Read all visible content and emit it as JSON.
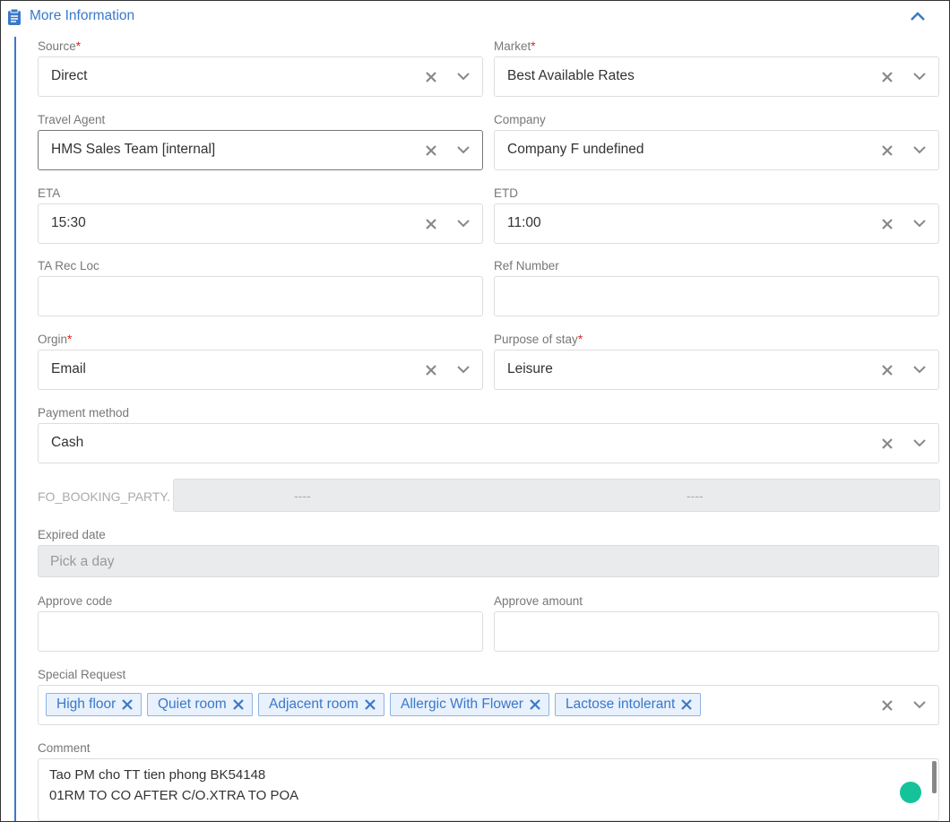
{
  "header": {
    "title": "More Information"
  },
  "rows": [
    [
      {
        "type": "select",
        "label": "Source",
        "required": "*",
        "value": "Direct"
      },
      {
        "type": "select",
        "label": "Market",
        "required": "*",
        "value": "Best Available Rates"
      }
    ],
    [
      {
        "type": "select",
        "label": "Travel Agent",
        "value": "HMS Sales Team [internal]",
        "focused": true
      },
      {
        "type": "select",
        "label": "Company",
        "value": "Company F undefined"
      }
    ],
    [
      {
        "type": "select",
        "label": "ETA",
        "value": "15:30"
      },
      {
        "type": "select",
        "label": "ETD",
        "value": "11:00"
      }
    ],
    [
      {
        "type": "input",
        "label": "TA Rec Loc"
      },
      {
        "type": "input",
        "label": "Ref Number"
      }
    ],
    [
      {
        "type": "select",
        "label": "Orgin",
        "required": "*",
        "value": "Email"
      },
      {
        "type": "select",
        "label": "Purpose of stay",
        "required": "*",
        "value": "Leisure"
      }
    ],
    [
      {
        "type": "select",
        "label": "Payment method",
        "value": "Cash"
      }
    ],
    [
      {
        "type": "range",
        "label": "FO_BOOKING_PARTY.",
        "values": [
          "----",
          "----"
        ]
      }
    ],
    [
      {
        "type": "date",
        "label": "Expired date",
        "placeholder": "Pick a day"
      }
    ],
    [
      {
        "type": "input",
        "label": "Approve code"
      },
      {
        "type": "input",
        "label": "Approve amount"
      }
    ],
    [
      {
        "type": "tags",
        "label": "Special Request",
        "tags": [
          "High floor",
          "Quiet room",
          "Adjacent room",
          "Allergic With Flower",
          "Lactose intolerant"
        ]
      }
    ],
    [
      {
        "type": "textarea",
        "label": "Comment",
        "lines": [
          "Tao PM cho TT tien phong BK54148",
          "01RM TO CO AFTER C/O.XTRA TO POA"
        ]
      }
    ]
  ]
}
